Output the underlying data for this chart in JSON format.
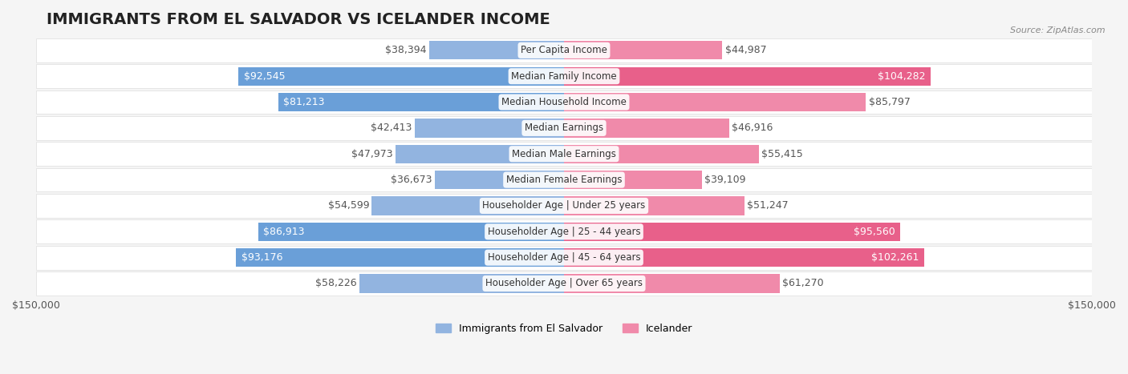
{
  "title": "IMMIGRANTS FROM EL SALVADOR VS ICELANDER INCOME",
  "source": "Source: ZipAtlas.com",
  "categories": [
    "Per Capita Income",
    "Median Family Income",
    "Median Household Income",
    "Median Earnings",
    "Median Male Earnings",
    "Median Female Earnings",
    "Householder Age | Under 25 years",
    "Householder Age | 25 - 44 years",
    "Householder Age | 45 - 64 years",
    "Householder Age | Over 65 years"
  ],
  "left_values": [
    38394,
    92545,
    81213,
    42413,
    47973,
    36673,
    54599,
    86913,
    93176,
    58226
  ],
  "right_values": [
    44987,
    104282,
    85797,
    46916,
    55415,
    39109,
    51247,
    95560,
    102261,
    61270
  ],
  "left_labels": [
    "$38,394",
    "$92,545",
    "$81,213",
    "$42,413",
    "$47,973",
    "$36,673",
    "$54,599",
    "$86,913",
    "$93,176",
    "$58,226"
  ],
  "right_labels": [
    "$44,987",
    "$104,282",
    "$85,797",
    "$46,916",
    "$55,415",
    "$39,109",
    "$51,247",
    "$95,560",
    "$102,261",
    "$61,270"
  ],
  "max_value": 150000,
  "left_color": "#92b4e0",
  "right_color": "#f08aaa",
  "left_color_dark": "#6a9fd8",
  "right_color_dark": "#e8608a",
  "left_legend": "Immigrants from El Salvador",
  "right_legend": "Icelander",
  "background_color": "#f5f5f5",
  "row_background": "#ffffff",
  "axis_label_left": "$150,000",
  "axis_label_right": "$150,000",
  "title_fontsize": 14,
  "label_fontsize": 9,
  "category_fontsize": 8.5
}
